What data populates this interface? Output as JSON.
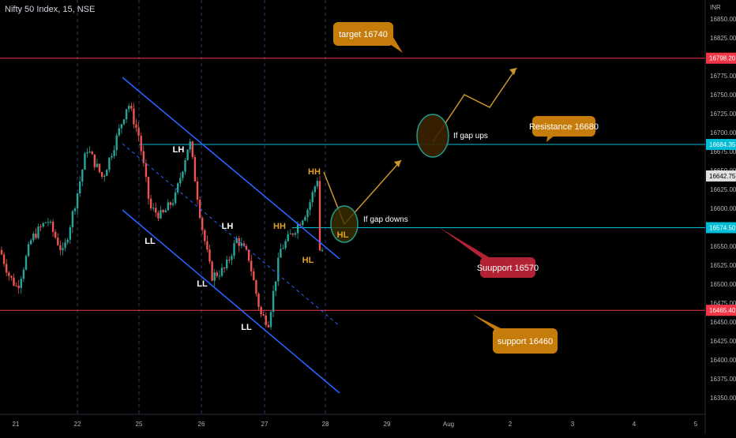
{
  "header": {
    "symbol_label": "Nifty 50 Index, 15, NSE"
  },
  "axis": {
    "currency": "INR"
  },
  "chart_data": {
    "type": "candlestick",
    "symbol": "Nifty 50 Index",
    "interval": "15",
    "exchange": "NSE",
    "y_ticks": [
      16350,
      16375,
      16400,
      16425,
      16450,
      16475,
      16500,
      16525,
      16550,
      16575,
      16600,
      16625,
      16650,
      16675,
      16700,
      16725,
      16750,
      16775,
      16800,
      16825,
      16850
    ],
    "y_tick_labels": [
      "16350.00",
      "16375.00",
      "16400.00",
      "16425.00",
      "16450.00",
      "16475.00",
      "16500.00",
      "16525.00",
      "16550.00",
      "16575.00",
      "16600.00",
      "16625.00",
      "16650.00",
      "16675.00",
      "16700.00",
      "16725.00",
      "16750.00",
      "16775.00",
      "16800.00",
      "16825.00",
      "16850.00"
    ],
    "ylim": [
      16340,
      16870
    ],
    "x_tick_labels": [
      "21",
      "22",
      "25",
      "26",
      "27",
      "28",
      "29",
      "Aug",
      "2",
      "3",
      "4",
      "5"
    ],
    "price_labels": [
      {
        "value": 16798.2,
        "text": "16798.20",
        "color": "#f23645"
      },
      {
        "value": 16684.35,
        "text": "16684.35",
        "color": "#00bcd4"
      },
      {
        "value": 16642.75,
        "text": "16642.75",
        "color": "#e0e0e0"
      },
      {
        "value": 16574.5,
        "text": "16574.50",
        "color": "#00bcd4"
      },
      {
        "value": 16465.4,
        "text": "16465.40",
        "color": "#f23645"
      }
    ],
    "annotations": {
      "target": "target 16740",
      "resistance": "Resistance 16680",
      "support_upper": "Suupport 16570",
      "support_lower": "support 16460",
      "gap_up": "If gap ups",
      "gap_down": "If gap downs"
    },
    "swing_labels": [
      {
        "text": "LH",
        "x": "25",
        "value": 16685,
        "color": "#ffffff"
      },
      {
        "text": "LL",
        "x": "25",
        "value": 16556,
        "color": "#ffffff"
      },
      {
        "text": "LH",
        "x": "26",
        "value": 16605,
        "color": "#ffffff"
      },
      {
        "text": "LL",
        "x": "26",
        "value": 16505,
        "color": "#ffffff"
      },
      {
        "text": "LL",
        "x": "27",
        "value": 16448,
        "color": "#ffffff"
      },
      {
        "text": "HH",
        "x": "27",
        "value": 16605,
        "color": "#e0a020"
      },
      {
        "text": "HL",
        "x": "27",
        "value": 16542,
        "color": "#e0a020"
      },
      {
        "text": "HH",
        "x": "28",
        "value": 16655,
        "color": "#e0a020"
      },
      {
        "text": "HL",
        "x": "28",
        "value": 16568,
        "color": "#e0a020"
      }
    ],
    "colors": {
      "up": "#26a69a",
      "down": "#ef5350",
      "channel": "#2962ff",
      "resistance_line": "#00bcd4",
      "support_line": "#f23645",
      "callout": "#c67c0a",
      "callout_red": "#b22234"
    }
  }
}
